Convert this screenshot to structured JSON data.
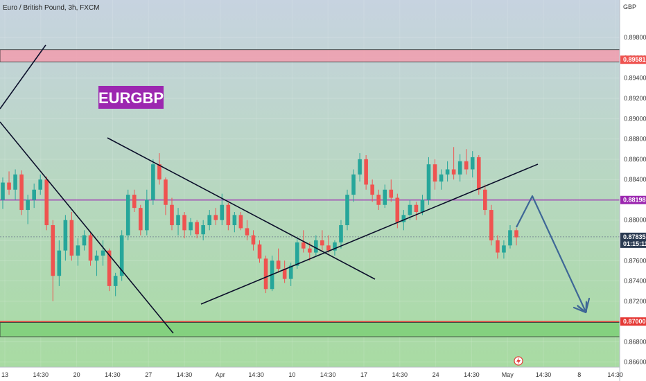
{
  "header": {
    "symbol_title": "Euro / British Pound, 3h, FXCM",
    "currency": "GBP"
  },
  "badge": {
    "text": "EURGBP",
    "color": "#9c27b0"
  },
  "colors": {
    "bg_top": "#c7d3e0",
    "bg_bottom": "#a8dba2",
    "up": "#26a69a",
    "down": "#ef5350",
    "resistance_zone": "#f0a0b0",
    "support_zone": "#7fcf7a",
    "level_line": "#9c27b0",
    "arrow": "#3e6796",
    "trendline": "#0b0f2a"
  },
  "chart_data": {
    "type": "candlestick",
    "title": "Euro / British Pound, 3h, FXCM",
    "y_axis": {
      "unit": "GBP",
      "range": [
        0.8655,
        0.9017
      ],
      "ticks": [
        "0.89800",
        "0.89600",
        "0.89400",
        "0.89200",
        "0.89000",
        "0.88800",
        "0.88600",
        "0.88400",
        "0.88200",
        "0.88000",
        "0.87800",
        "0.87600",
        "0.87400",
        "0.87200",
        "0.87000",
        "0.86800",
        "0.86600"
      ]
    },
    "x_axis": {
      "ticks": [
        "13",
        "14:30",
        "20",
        "14:30",
        "27",
        "14:30",
        "Apr",
        "14:30",
        "10",
        "14:30",
        "17",
        "14:30",
        "24",
        "14:30",
        "May",
        "14:30",
        "8",
        "14:30"
      ]
    },
    "price_labels": [
      {
        "label": "0.89581",
        "value": 0.89581,
        "color": "#ef5350"
      },
      {
        "label": "0.88198",
        "value": 0.88198,
        "color": "#9c27b0"
      },
      {
        "label": "0.87835",
        "value": 0.87835,
        "color": "#2b3b52",
        "sub": "01:15:11"
      },
      {
        "label": "0.87000",
        "value": 0.87,
        "color": "#e53935"
      }
    ],
    "zones": [
      {
        "name": "resistance",
        "from": 0.8956,
        "to": 0.8968
      },
      {
        "name": "support",
        "from": 0.8685,
        "to": 0.8699
      }
    ],
    "horizontal_levels": [
      0.88198,
      0.87
    ],
    "candles": [
      [
        0.882,
        0.8842,
        0.8811,
        0.8837
      ],
      [
        0.8837,
        0.8848,
        0.8825,
        0.883
      ],
      [
        0.883,
        0.885,
        0.882,
        0.8845
      ],
      [
        0.8845,
        0.8849,
        0.8805,
        0.881
      ],
      [
        0.881,
        0.8825,
        0.8796,
        0.882
      ],
      [
        0.882,
        0.8836,
        0.8812,
        0.883
      ],
      [
        0.883,
        0.8845,
        0.8825,
        0.884
      ],
      [
        0.884,
        0.8843,
        0.879,
        0.8795
      ],
      [
        0.8795,
        0.88,
        0.872,
        0.8745
      ],
      [
        0.8745,
        0.878,
        0.8735,
        0.877
      ],
      [
        0.877,
        0.8805,
        0.876,
        0.88
      ],
      [
        0.88,
        0.8808,
        0.876,
        0.8765
      ],
      [
        0.8765,
        0.8782,
        0.8755,
        0.8775
      ],
      [
        0.8775,
        0.879,
        0.877,
        0.8785
      ],
      [
        0.8785,
        0.8788,
        0.8755,
        0.876
      ],
      [
        0.876,
        0.877,
        0.8745,
        0.8765
      ],
      [
        0.8765,
        0.878,
        0.8755,
        0.877
      ],
      [
        0.877,
        0.8772,
        0.873,
        0.8735
      ],
      [
        0.8735,
        0.8748,
        0.8725,
        0.8745
      ],
      [
        0.8745,
        0.879,
        0.874,
        0.8785
      ],
      [
        0.8785,
        0.883,
        0.878,
        0.8825
      ],
      [
        0.8825,
        0.883,
        0.8808,
        0.8812
      ],
      [
        0.8812,
        0.8815,
        0.8785,
        0.879
      ],
      [
        0.879,
        0.883,
        0.8785,
        0.882
      ],
      [
        0.882,
        0.886,
        0.8815,
        0.8855
      ],
      [
        0.8855,
        0.8866,
        0.8835,
        0.884
      ],
      [
        0.884,
        0.8842,
        0.8805,
        0.8815
      ],
      [
        0.8815,
        0.8822,
        0.879,
        0.8795
      ],
      [
        0.8795,
        0.8812,
        0.8785,
        0.8805
      ],
      [
        0.8805,
        0.8808,
        0.8782,
        0.879
      ],
      [
        0.879,
        0.8802,
        0.8785,
        0.8798
      ],
      [
        0.8798,
        0.88,
        0.8782,
        0.8786
      ],
      [
        0.8786,
        0.88,
        0.878,
        0.8795
      ],
      [
        0.8795,
        0.881,
        0.879,
        0.8805
      ],
      [
        0.8805,
        0.8812,
        0.8795,
        0.88
      ],
      [
        0.88,
        0.8826,
        0.8795,
        0.8815
      ],
      [
        0.8815,
        0.8817,
        0.879,
        0.8795
      ],
      [
        0.8795,
        0.8808,
        0.8788,
        0.8805
      ],
      [
        0.8805,
        0.8808,
        0.879,
        0.8792
      ],
      [
        0.8792,
        0.88,
        0.878,
        0.8785
      ],
      [
        0.8785,
        0.879,
        0.877,
        0.8776
      ],
      [
        0.8776,
        0.878,
        0.8758,
        0.8762
      ],
      [
        0.8762,
        0.8765,
        0.8728,
        0.8732
      ],
      [
        0.8732,
        0.8765,
        0.873,
        0.876
      ],
      [
        0.876,
        0.8772,
        0.8748,
        0.8752
      ],
      [
        0.8752,
        0.876,
        0.8738,
        0.8742
      ],
      [
        0.8742,
        0.8758,
        0.8735,
        0.8755
      ],
      [
        0.8755,
        0.8782,
        0.8752,
        0.8778
      ],
      [
        0.8778,
        0.879,
        0.8768,
        0.8772
      ],
      [
        0.8772,
        0.8778,
        0.876,
        0.8768
      ],
      [
        0.8768,
        0.8785,
        0.8765,
        0.878
      ],
      [
        0.878,
        0.879,
        0.877,
        0.8775
      ],
      [
        0.8775,
        0.8785,
        0.8768,
        0.877
      ],
      [
        0.877,
        0.878,
        0.8765,
        0.8778
      ],
      [
        0.8778,
        0.88,
        0.8772,
        0.8795
      ],
      [
        0.8795,
        0.883,
        0.879,
        0.8825
      ],
      [
        0.8825,
        0.885,
        0.8818,
        0.8845
      ],
      [
        0.8845,
        0.8866,
        0.8838,
        0.886
      ],
      [
        0.886,
        0.8864,
        0.883,
        0.8835
      ],
      [
        0.8835,
        0.884,
        0.8818,
        0.8825
      ],
      [
        0.8825,
        0.883,
        0.881,
        0.8815
      ],
      [
        0.8815,
        0.8835,
        0.8812,
        0.883
      ],
      [
        0.883,
        0.884,
        0.8818,
        0.8822
      ],
      [
        0.8822,
        0.8826,
        0.8792,
        0.8798
      ],
      [
        0.8798,
        0.881,
        0.879,
        0.8805
      ],
      [
        0.8805,
        0.882,
        0.88,
        0.8815
      ],
      [
        0.8815,
        0.8818,
        0.88,
        0.8808
      ],
      [
        0.8808,
        0.8825,
        0.8805,
        0.882
      ],
      [
        0.882,
        0.8862,
        0.8815,
        0.8855
      ],
      [
        0.8855,
        0.886,
        0.883,
        0.8838
      ],
      [
        0.8838,
        0.885,
        0.883,
        0.8845
      ],
      [
        0.8845,
        0.8858,
        0.8838,
        0.885
      ],
      [
        0.885,
        0.8872,
        0.884,
        0.8845
      ],
      [
        0.8845,
        0.8865,
        0.8838,
        0.8858
      ],
      [
        0.8858,
        0.887,
        0.8845,
        0.885
      ],
      [
        0.885,
        0.8868,
        0.8842,
        0.8862
      ],
      [
        0.8862,
        0.8864,
        0.8825,
        0.883
      ],
      [
        0.883,
        0.8835,
        0.8805,
        0.881
      ],
      [
        0.881,
        0.8815,
        0.8775,
        0.878
      ],
      [
        0.878,
        0.8785,
        0.8762,
        0.8768
      ],
      [
        0.8768,
        0.878,
        0.8762,
        0.8775
      ],
      [
        0.8775,
        0.8795,
        0.8772,
        0.879
      ],
      [
        0.879,
        0.8792,
        0.8775,
        0.8783
      ]
    ],
    "annotations": {
      "badge": "EURGBP",
      "trendlines": 4,
      "projection_arrow": "up to 0.88198 then down to 0.87000"
    }
  }
}
